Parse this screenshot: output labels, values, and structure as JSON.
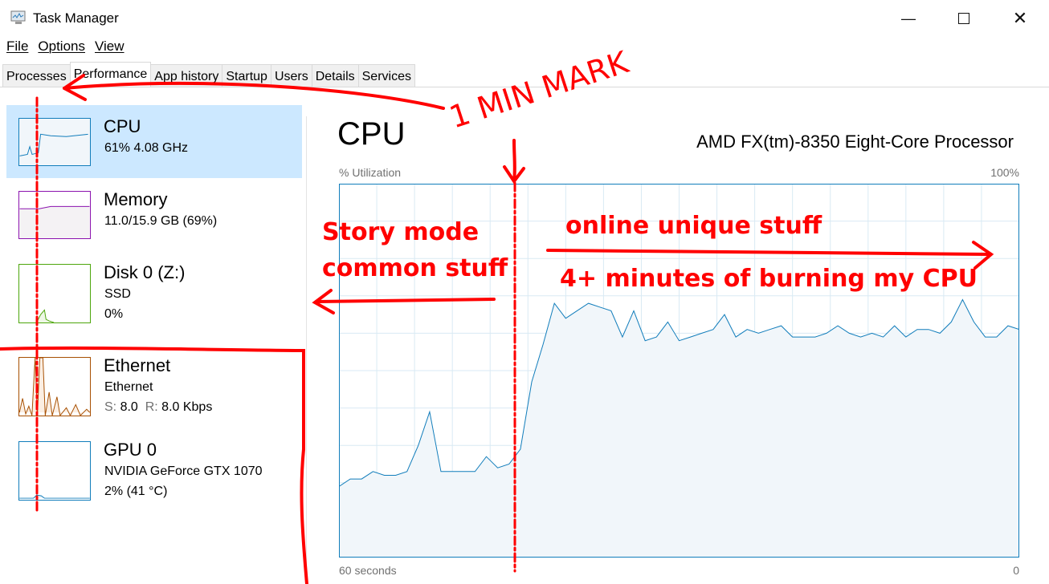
{
  "window": {
    "title": "Task Manager",
    "icon": "task-manager-icon",
    "controls": [
      "minimize-icon",
      "maximize-icon",
      "close-icon"
    ]
  },
  "menu": [
    "File",
    "Options",
    "View"
  ],
  "tabs": [
    {
      "label": "Processes"
    },
    {
      "label": "Performance",
      "active": true
    },
    {
      "label": "App history"
    },
    {
      "label": "Startup"
    },
    {
      "label": "Users"
    },
    {
      "label": "Details"
    },
    {
      "label": "Services"
    }
  ],
  "sidebar": {
    "items": [
      {
        "name": "CPU",
        "line1": "61%  4.08 GHz",
        "color": "#117dbb",
        "selected": true
      },
      {
        "name": "Memory",
        "line1": "11.0/15.9 GB (69%)",
        "color": "#8b12ae"
      },
      {
        "name": "Disk 0 (Z:)",
        "line1": "SSD",
        "line2": "0%",
        "color": "#4da60c"
      },
      {
        "name": "Ethernet",
        "line1": "Ethernet",
        "send_label": "S:",
        "send": "8.0",
        "recv_label": "R:",
        "recv": "8.0 Kbps",
        "color": "#a74f01"
      },
      {
        "name": "GPU 0",
        "line1": "NVIDIA GeForce GTX 1070",
        "line2": "2%  (41 °C)",
        "color": "#117dbb"
      }
    ]
  },
  "main": {
    "title": "CPU",
    "model": "AMD FX(tm)-8350 Eight-Core Processor",
    "ylabel": "% Utilization",
    "ymax_label": "100%",
    "xleft_label": "60 seconds",
    "xright_label": "0"
  },
  "chart_data": {
    "type": "area",
    "ylim": [
      0,
      100
    ],
    "xlim": [
      60,
      0
    ],
    "grid": true,
    "color": "#117dbb",
    "fill": "#f1f6fa",
    "values": [
      19,
      21,
      21,
      23,
      22,
      22,
      23,
      30,
      39,
      23,
      23,
      23,
      23,
      27,
      24,
      25,
      29,
      47,
      57,
      68,
      64,
      66,
      68,
      67,
      66,
      59,
      66,
      58,
      59,
      63,
      58,
      59,
      60,
      61,
      65,
      59,
      61,
      60,
      61,
      62,
      59,
      59,
      59,
      60,
      62,
      60,
      59,
      60,
      59,
      62,
      59,
      61,
      61,
      60,
      63,
      69,
      63,
      59,
      59,
      62,
      61
    ]
  },
  "annotations": {
    "min_mark": "1 MIN MARK",
    "left_note_1": "Story mode",
    "left_note_2": "common stuff",
    "right_note_1": "online unique stuff",
    "right_note_2": "4+ minutes of burning my CPU",
    "color": "#ff0000"
  }
}
